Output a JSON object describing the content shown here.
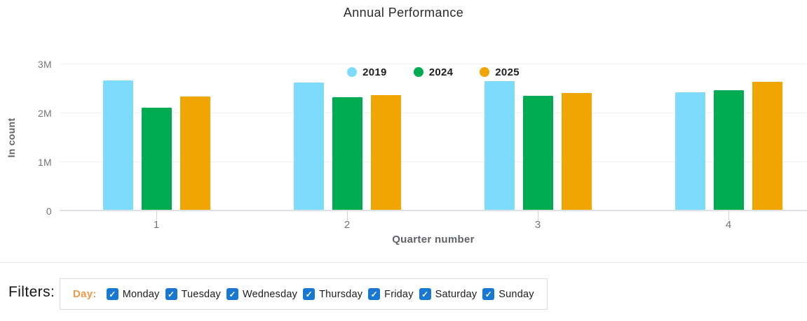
{
  "chart_data": {
    "type": "bar",
    "title": "Annual Performance",
    "xlabel": "Quarter number",
    "ylabel": "In count",
    "categories": [
      "1",
      "2",
      "3",
      "4"
    ],
    "series": [
      {
        "name": "2019",
        "color": "#7EDBFB",
        "values": [
          2640000,
          2600000,
          2630000,
          2400000
        ]
      },
      {
        "name": "2024",
        "color": "#00AB51",
        "values": [
          2090000,
          2300000,
          2330000,
          2440000
        ]
      },
      {
        "name": "2025",
        "color": "#F0A500",
        "values": [
          2310000,
          2340000,
          2390000,
          2610000
        ]
      }
    ],
    "ylim": [
      0,
      3000000
    ],
    "yticks": [
      {
        "value": 0,
        "label": "0"
      },
      {
        "value": 1000000,
        "label": "1M"
      },
      {
        "value": 2000000,
        "label": "2M"
      },
      {
        "value": 3000000,
        "label": "3M"
      }
    ],
    "grid": true,
    "legend_position": "top-center"
  },
  "filters": {
    "label": "Filters:",
    "group_label": "Day:",
    "group_label_color": "#F2994A",
    "checkbox_color": "#1878D2",
    "check_glyph": "✓",
    "options": [
      {
        "label": "Monday",
        "checked": true
      },
      {
        "label": "Tuesday",
        "checked": true
      },
      {
        "label": "Wednesday",
        "checked": true
      },
      {
        "label": "Thursday",
        "checked": true
      },
      {
        "label": "Friday",
        "checked": true
      },
      {
        "label": "Saturday",
        "checked": true
      },
      {
        "label": "Sunday",
        "checked": true
      }
    ]
  }
}
